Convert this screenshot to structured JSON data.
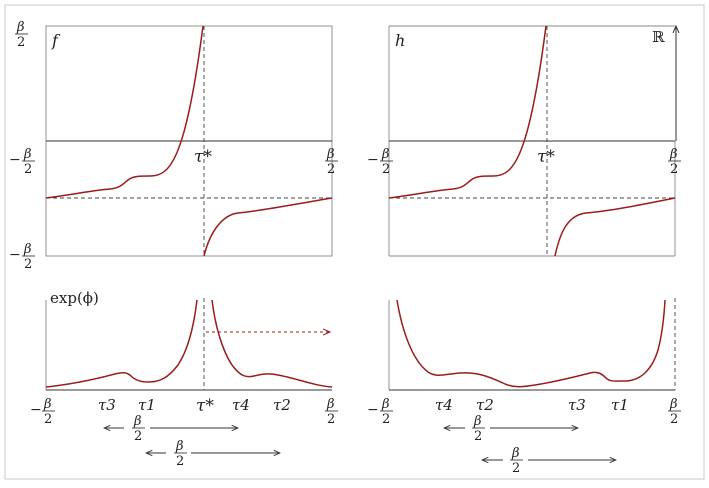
{
  "colors": {
    "curve": "#9b1c1c",
    "axis": "#333333",
    "frame": "#bdbdbd",
    "dashed": "#444444"
  },
  "panels": {
    "top_left": {
      "fn": "f",
      "frac_beta": "β",
      "frac_two": "2",
      "minus": "−",
      "tau_star": "τ*"
    },
    "top_right": {
      "fn": "h",
      "reals": "ℝ",
      "frac_beta": "β",
      "frac_two": "2",
      "minus": "−",
      "tau_star": "τ*"
    },
    "bottom_left": {
      "fn": "exp(ϕ)",
      "ticks": [
        "τ3",
        "τ1",
        "τ*",
        "τ4",
        "τ2"
      ]
    },
    "bottom_right": {
      "ticks": [
        "τ4",
        "τ2",
        "τ3",
        "τ1"
      ]
    }
  }
}
